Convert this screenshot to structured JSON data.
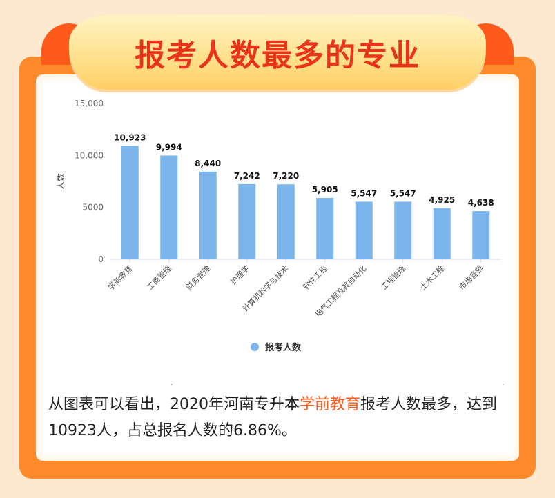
{
  "header": {
    "title": "报考人数最多的专业"
  },
  "chart_data": {
    "type": "bar",
    "title": "",
    "xlabel": "",
    "ylabel": "人数",
    "ylim": [
      0,
      15000
    ],
    "yticks": [
      "0",
      "5000",
      "10,000",
      "15,000"
    ],
    "grid": false,
    "legend_position": "bottom",
    "bar_color": "#7cb5ec",
    "categories": [
      "学前教育",
      "工商管理",
      "财务管理",
      "护理学",
      "计算机科学与技术",
      "软件工程",
      "电气工程及其自动化",
      "工程管理",
      "土木工程",
      "市场营销"
    ],
    "series": [
      {
        "name": "报考人数",
        "values": [
          10923,
          9994,
          8440,
          7242,
          7220,
          5905,
          5547,
          5547,
          4925,
          4638
        ],
        "labels": [
          "10,923",
          "9,994",
          "8,440",
          "7,242",
          "7,220",
          "5,905",
          "5,547",
          "5,547",
          "4,925",
          "4,638"
        ]
      }
    ]
  },
  "caption": {
    "part1": "从图表可以看出，2020年河南专升本",
    "highlight": "学前教育",
    "part2": "报考人数最多，达到10923人，占总报名人数的6.86%。"
  }
}
